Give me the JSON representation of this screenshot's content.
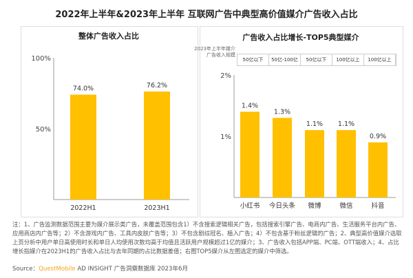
{
  "title": "2022年上半年&2023年上半年 互联网广告中典型高价值媒介广告收入占比",
  "chart_data": [
    {
      "type": "bar",
      "title": "整体广告收入占比",
      "categories": [
        "2022H1",
        "2023H1"
      ],
      "values": [
        74.0,
        76.2
      ],
      "data_labels": [
        "74.0%",
        "76.2%"
      ],
      "yticks": [
        "0%",
        "50%",
        "100%"
      ],
      "ylim": [
        0,
        100
      ],
      "grid": false,
      "color": "#ffc000"
    },
    {
      "type": "bar",
      "title": "广告收入占比增长-TOP5典型媒介",
      "categories": [
        "小红书",
        "今日头条",
        "微博",
        "微信",
        "抖音"
      ],
      "values": [
        1.4,
        1.3,
        1.1,
        1.1,
        0.9
      ],
      "data_labels": [
        "1.4%",
        "1.3%",
        "1.1%",
        "1.1%",
        "0.9%"
      ],
      "yticks": [
        "0%",
        "1%",
        "2%"
      ],
      "ylim": [
        0,
        2
      ],
      "grid": false,
      "color": "#ffc000",
      "scale_header": "2023年上半年媒介广告收入规模",
      "scale_values": [
        "50亿以下",
        "50亿-100亿",
        "50亿以下",
        "100亿以上",
        "100亿以上"
      ]
    }
  ],
  "notes": "注：1、广告监测数据范围主要为媒介展示类广告，未覆盖范围包含1）不含搜索逻辑相关广告，包括搜索引擎广告、电商内广告、生活服务平台内广告、应用商店内广告等；2）不含游戏内广告、工具内皮肤广告等；3）不包含剧综冠名、植入广告；4）不包含基于粉丝逻辑的广告；2、典型高价值媒介选取上页分析中用户单日高使用时长和单日人均使用次数均高于均值且活跃用户规模超过1亿的媒介；3、广告收入包括APP端、PC端、OTT端收入；4、占比增长指媒介在2023H1的广告收入占比与去年同期的占比数据差值；右图TOP5媒介从左图选定的媒介中筛选。",
  "source": {
    "label": "Source：",
    "brand": "QuestMobile",
    "text": " AD INSIGHT 广告洞察数据库 2023年6月"
  }
}
